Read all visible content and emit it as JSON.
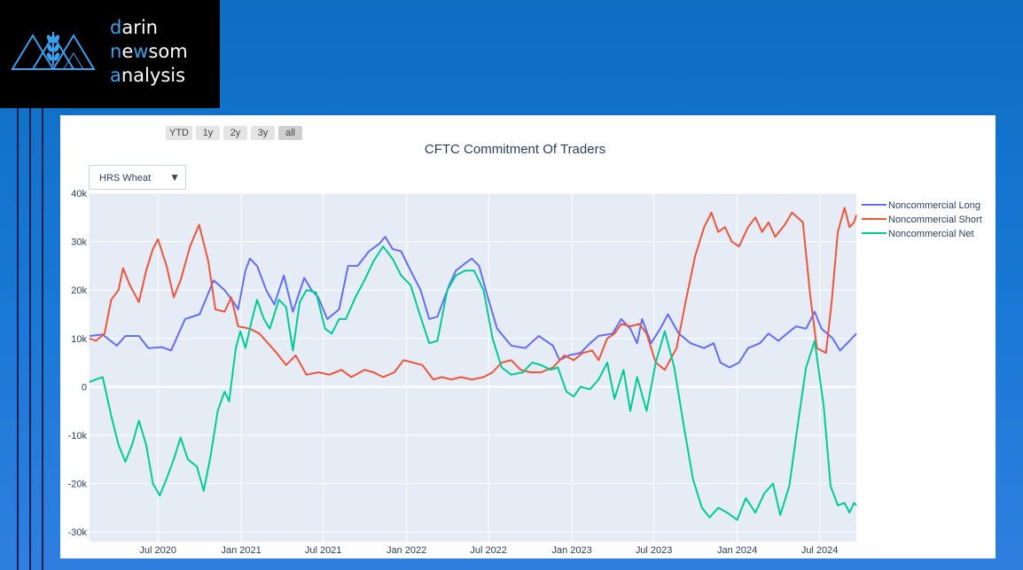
{
  "logo": {
    "line1_accent": "d",
    "line1_rest": "arin",
    "line2_accent": "n",
    "line2_mid": "e",
    "line2_accent2": "w",
    "line2_rest": "som",
    "line3_accent": "a",
    "line3_rest": "nalysis",
    "icon": "triangle-wheat-logo-icon"
  },
  "range_buttons": [
    "YTD",
    "1y",
    "2y",
    "3y",
    "all"
  ],
  "active_range": "all",
  "dropdown": {
    "selected": "HRS Wheat",
    "icon": "triangle-down-icon"
  },
  "chart_data": {
    "type": "line",
    "title": "CFTC Commitment Of Traders",
    "xlabel": "",
    "ylabel": "",
    "ylim": [
      -32000,
      40000
    ],
    "xlim": [
      "2020-02-01",
      "2024-09-20"
    ],
    "x_ticks": [
      "Jul 2020",
      "Jan 2021",
      "Jul 2021",
      "Jan 2022",
      "Jul 2022",
      "Jan 2023",
      "Jul 2023",
      "Jan 2024",
      "Jul 2024"
    ],
    "y_ticks": [
      "-30k",
      "-20k",
      "-10k",
      "0",
      "10k",
      "20k",
      "30k",
      "40k"
    ],
    "grid": true,
    "legend": "right",
    "series": [
      {
        "name": "Noncommercial Long",
        "color": "#636efa",
        "points": [
          [
            "2020-02-01",
            10500
          ],
          [
            "2020-03-01",
            10800
          ],
          [
            "2020-04-01",
            8500
          ],
          [
            "2020-04-20",
            10500
          ],
          [
            "2020-05-20",
            10500
          ],
          [
            "2020-06-10",
            8000
          ],
          [
            "2020-07-10",
            8200
          ],
          [
            "2020-07-30",
            7500
          ],
          [
            "2020-08-30",
            14000
          ],
          [
            "2020-10-01",
            15000
          ],
          [
            "2020-11-01",
            22000
          ],
          [
            "2020-11-25",
            20000
          ],
          [
            "2020-12-15",
            17500
          ],
          [
            "2020-12-25",
            16000
          ],
          [
            "2021-01-10",
            24000
          ],
          [
            "2021-01-20",
            26500
          ],
          [
            "2021-02-05",
            25000
          ],
          [
            "2021-02-25",
            20000
          ],
          [
            "2021-03-15",
            17000
          ],
          [
            "2021-04-05",
            23000
          ],
          [
            "2021-04-25",
            15500
          ],
          [
            "2021-05-20",
            22500
          ],
          [
            "2021-06-05",
            20000
          ],
          [
            "2021-06-20",
            18500
          ],
          [
            "2021-07-10",
            14000
          ],
          [
            "2021-08-05",
            16000
          ],
          [
            "2021-08-25",
            25000
          ],
          [
            "2021-09-15",
            25000
          ],
          [
            "2021-10-10",
            28000
          ],
          [
            "2021-11-01",
            29500
          ],
          [
            "2021-11-15",
            31000
          ],
          [
            "2021-12-01",
            28500
          ],
          [
            "2021-12-20",
            28000
          ],
          [
            "2022-01-10",
            24000
          ],
          [
            "2022-02-01",
            20000
          ],
          [
            "2022-02-20",
            14000
          ],
          [
            "2022-03-10",
            14500
          ],
          [
            "2022-04-05",
            21000
          ],
          [
            "2022-04-20",
            24000
          ],
          [
            "2022-05-10",
            25500
          ],
          [
            "2022-05-25",
            26500
          ],
          [
            "2022-06-10",
            25000
          ],
          [
            "2022-07-01",
            18000
          ],
          [
            "2022-07-20",
            12000
          ],
          [
            "2022-08-20",
            8500
          ],
          [
            "2022-09-20",
            8000
          ],
          [
            "2022-10-20",
            10500
          ],
          [
            "2022-11-20",
            8500
          ],
          [
            "2022-12-05",
            5500
          ],
          [
            "2022-12-25",
            6500
          ],
          [
            "2023-01-20",
            7000
          ],
          [
            "2023-02-10",
            9000
          ],
          [
            "2023-03-01",
            10500
          ],
          [
            "2023-04-01",
            11000
          ],
          [
            "2023-04-20",
            14000
          ],
          [
            "2023-05-10",
            12000
          ],
          [
            "2023-05-25",
            9000
          ],
          [
            "2023-06-05",
            14000
          ],
          [
            "2023-06-25",
            9000
          ],
          [
            "2023-07-15",
            12000
          ],
          [
            "2023-08-01",
            15000
          ],
          [
            "2023-08-25",
            11000
          ],
          [
            "2023-09-20",
            9000
          ],
          [
            "2023-10-20",
            8000
          ],
          [
            "2023-11-10",
            9000
          ],
          [
            "2023-11-25",
            5000
          ],
          [
            "2023-12-15",
            4000
          ],
          [
            "2024-01-05",
            5000
          ],
          [
            "2024-01-25",
            8000
          ],
          [
            "2024-02-20",
            9000
          ],
          [
            "2024-03-10",
            11000
          ],
          [
            "2024-04-01",
            9500
          ],
          [
            "2024-04-20",
            11000
          ],
          [
            "2024-05-10",
            12500
          ],
          [
            "2024-06-01",
            12000
          ],
          [
            "2024-06-20",
            15500
          ],
          [
            "2024-07-05",
            12000
          ],
          [
            "2024-07-30",
            10000
          ],
          [
            "2024-08-15",
            7500
          ],
          [
            "2024-09-05",
            9500
          ],
          [
            "2024-09-20",
            11000
          ]
        ]
      },
      {
        "name": "Noncommercial Short",
        "color": "#ef553b",
        "points": [
          [
            "2020-02-01",
            10000
          ],
          [
            "2020-02-15",
            9500
          ],
          [
            "2020-03-05",
            11000
          ],
          [
            "2020-03-20",
            18000
          ],
          [
            "2020-04-05",
            20000
          ],
          [
            "2020-04-15",
            24500
          ],
          [
            "2020-04-30",
            21000
          ],
          [
            "2020-05-20",
            17500
          ],
          [
            "2020-06-05",
            24000
          ],
          [
            "2020-06-20",
            28500
          ],
          [
            "2020-07-01",
            30500
          ],
          [
            "2020-07-20",
            25000
          ],
          [
            "2020-08-05",
            18500
          ],
          [
            "2020-08-20",
            22000
          ],
          [
            "2020-09-10",
            29000
          ],
          [
            "2020-09-30",
            33500
          ],
          [
            "2020-10-20",
            26000
          ],
          [
            "2020-11-05",
            16000
          ],
          [
            "2020-11-25",
            15500
          ],
          [
            "2020-12-10",
            18500
          ],
          [
            "2020-12-25",
            12500
          ],
          [
            "2021-01-20",
            12000
          ],
          [
            "2021-02-10",
            11000
          ],
          [
            "2021-03-01",
            9000
          ],
          [
            "2021-03-20",
            7000
          ],
          [
            "2021-04-10",
            4500
          ],
          [
            "2021-05-01",
            6500
          ],
          [
            "2021-05-25",
            2500
          ],
          [
            "2021-06-20",
            3000
          ],
          [
            "2021-07-15",
            2500
          ],
          [
            "2021-08-10",
            3500
          ],
          [
            "2021-09-01",
            2000
          ],
          [
            "2021-09-30",
            3500
          ],
          [
            "2021-10-20",
            3000
          ],
          [
            "2021-11-10",
            2000
          ],
          [
            "2021-12-05",
            3000
          ],
          [
            "2021-12-25",
            5500
          ],
          [
            "2022-01-15",
            5000
          ],
          [
            "2022-02-05",
            4500
          ],
          [
            "2022-03-01",
            1500
          ],
          [
            "2022-03-20",
            2000
          ],
          [
            "2022-04-10",
            1500
          ],
          [
            "2022-05-01",
            2000
          ],
          [
            "2022-05-25",
            1500
          ],
          [
            "2022-06-20",
            2000
          ],
          [
            "2022-07-10",
            3000
          ],
          [
            "2022-07-30",
            5000
          ],
          [
            "2022-08-20",
            5500
          ],
          [
            "2022-09-10",
            3500
          ],
          [
            "2022-10-01",
            3000
          ],
          [
            "2022-10-25",
            3000
          ],
          [
            "2022-11-20",
            4000
          ],
          [
            "2022-12-15",
            6500
          ],
          [
            "2023-01-05",
            5500
          ],
          [
            "2023-01-25",
            7000
          ],
          [
            "2023-02-15",
            7500
          ],
          [
            "2023-03-01",
            5500
          ],
          [
            "2023-03-20",
            10000
          ],
          [
            "2023-04-05",
            11000
          ],
          [
            "2023-04-20",
            13000
          ],
          [
            "2023-05-10",
            12500
          ],
          [
            "2023-05-30",
            13000
          ],
          [
            "2023-06-15",
            11000
          ],
          [
            "2023-07-05",
            5000
          ],
          [
            "2023-07-25",
            3500
          ],
          [
            "2023-08-20",
            8000
          ],
          [
            "2023-09-10",
            18000
          ],
          [
            "2023-09-30",
            27000
          ],
          [
            "2023-10-20",
            33000
          ],
          [
            "2023-11-05",
            36000
          ],
          [
            "2023-11-20",
            32000
          ],
          [
            "2023-12-05",
            33000
          ],
          [
            "2023-12-20",
            30000
          ],
          [
            "2024-01-05",
            29000
          ],
          [
            "2024-01-25",
            33000
          ],
          [
            "2024-02-10",
            35000
          ],
          [
            "2024-02-25",
            32000
          ],
          [
            "2024-03-10",
            34000
          ],
          [
            "2024-03-25",
            31000
          ],
          [
            "2024-04-15",
            33500
          ],
          [
            "2024-05-01",
            36000
          ],
          [
            "2024-05-25",
            34000
          ],
          [
            "2024-06-10",
            19000
          ],
          [
            "2024-06-25",
            8000
          ],
          [
            "2024-07-15",
            7000
          ],
          [
            "2024-07-28",
            18000
          ],
          [
            "2024-08-10",
            32000
          ],
          [
            "2024-08-25",
            37000
          ],
          [
            "2024-09-05",
            33000
          ],
          [
            "2024-09-15",
            34000
          ],
          [
            "2024-09-20",
            35500
          ]
        ]
      },
      {
        "name": "Noncommercial Net",
        "color": "#00cc96",
        "points": [
          [
            "2020-02-01",
            1000
          ],
          [
            "2020-02-15",
            1500
          ],
          [
            "2020-03-01",
            2000
          ],
          [
            "2020-03-20",
            -6000
          ],
          [
            "2020-04-05",
            -12000
          ],
          [
            "2020-04-20",
            -15500
          ],
          [
            "2020-05-05",
            -12000
          ],
          [
            "2020-05-20",
            -7000
          ],
          [
            "2020-06-05",
            -12000
          ],
          [
            "2020-06-20",
            -20000
          ],
          [
            "2020-07-05",
            -22500
          ],
          [
            "2020-07-20",
            -19000
          ],
          [
            "2020-08-05",
            -15000
          ],
          [
            "2020-08-20",
            -10500
          ],
          [
            "2020-09-05",
            -15000
          ],
          [
            "2020-09-25",
            -16500
          ],
          [
            "2020-10-10",
            -21500
          ],
          [
            "2020-10-25",
            -14500
          ],
          [
            "2020-11-10",
            -5000
          ],
          [
            "2020-11-25",
            -1000
          ],
          [
            "2020-12-05",
            -3000
          ],
          [
            "2020-12-20",
            8000
          ],
          [
            "2020-12-30",
            11500
          ],
          [
            "2021-01-10",
            8000
          ],
          [
            "2021-01-25",
            14000
          ],
          [
            "2021-02-05",
            18000
          ],
          [
            "2021-02-20",
            14000
          ],
          [
            "2021-03-05",
            12000
          ],
          [
            "2021-03-25",
            18000
          ],
          [
            "2021-04-10",
            16500
          ],
          [
            "2021-04-25",
            7500
          ],
          [
            "2021-05-10",
            17500
          ],
          [
            "2021-05-25",
            20000
          ],
          [
            "2021-06-15",
            19500
          ],
          [
            "2021-07-05",
            12000
          ],
          [
            "2021-07-20",
            11000
          ],
          [
            "2021-08-05",
            14000
          ],
          [
            "2021-08-20",
            14000
          ],
          [
            "2021-09-10",
            18500
          ],
          [
            "2021-09-30",
            22000
          ],
          [
            "2021-10-20",
            26000
          ],
          [
            "2021-11-10",
            29000
          ],
          [
            "2021-12-01",
            26500
          ],
          [
            "2021-12-20",
            23000
          ],
          [
            "2022-01-10",
            21000
          ],
          [
            "2022-01-30",
            15000
          ],
          [
            "2022-02-20",
            9000
          ],
          [
            "2022-03-10",
            9500
          ],
          [
            "2022-04-01",
            20000
          ],
          [
            "2022-04-20",
            23000
          ],
          [
            "2022-05-10",
            24000
          ],
          [
            "2022-05-30",
            24000
          ],
          [
            "2022-06-20",
            20000
          ],
          [
            "2022-07-10",
            10000
          ],
          [
            "2022-07-30",
            4000
          ],
          [
            "2022-08-20",
            2500
          ],
          [
            "2022-09-15",
            3000
          ],
          [
            "2022-10-05",
            5000
          ],
          [
            "2022-10-25",
            4500
          ],
          [
            "2022-11-15",
            3500
          ],
          [
            "2022-12-01",
            4000
          ],
          [
            "2022-12-20",
            -1000
          ],
          [
            "2023-01-05",
            -2000
          ],
          [
            "2023-01-20",
            0
          ],
          [
            "2023-02-10",
            -500
          ],
          [
            "2023-03-01",
            1500
          ],
          [
            "2023-03-20",
            5000
          ],
          [
            "2023-04-05",
            -2500
          ],
          [
            "2023-04-25",
            3500
          ],
          [
            "2023-05-10",
            -5000
          ],
          [
            "2023-05-25",
            2000
          ],
          [
            "2023-06-15",
            -5000
          ],
          [
            "2023-07-05",
            5000
          ],
          [
            "2023-07-25",
            11500
          ],
          [
            "2023-08-15",
            4000
          ],
          [
            "2023-09-05",
            -8000
          ],
          [
            "2023-09-25",
            -19000
          ],
          [
            "2023-10-15",
            -25000
          ],
          [
            "2023-11-01",
            -27000
          ],
          [
            "2023-11-20",
            -25000
          ],
          [
            "2023-12-10",
            -26000
          ],
          [
            "2024-01-01",
            -27500
          ],
          [
            "2024-01-20",
            -23000
          ],
          [
            "2024-02-10",
            -26000
          ],
          [
            "2024-03-01",
            -22000
          ],
          [
            "2024-03-20",
            -20000
          ],
          [
            "2024-04-05",
            -26500
          ],
          [
            "2024-04-25",
            -20500
          ],
          [
            "2024-05-15",
            -7000
          ],
          [
            "2024-06-01",
            4000
          ],
          [
            "2024-06-20",
            9500
          ],
          [
            "2024-07-10",
            -4000
          ],
          [
            "2024-07-25",
            -20500
          ],
          [
            "2024-08-10",
            -24500
          ],
          [
            "2024-08-25",
            -24000
          ],
          [
            "2024-09-05",
            -26000
          ],
          [
            "2024-09-15",
            -24000
          ],
          [
            "2024-09-20",
            -24500
          ]
        ]
      }
    ]
  }
}
